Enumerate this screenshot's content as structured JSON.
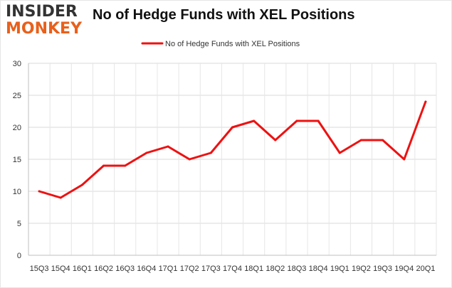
{
  "header": {
    "logo_line1": "INSIDER",
    "logo_line2": "MONKEY",
    "logo_line1_color": "#333333",
    "logo_line2_color": "#e8601c"
  },
  "chart_data": {
    "type": "line",
    "title": "No of Hedge Funds with XEL Positions",
    "xlabel": "",
    "ylabel": "",
    "categories": [
      "15Q3",
      "15Q4",
      "16Q1",
      "16Q2",
      "16Q3",
      "16Q4",
      "17Q1",
      "17Q2",
      "17Q3",
      "17Q4",
      "18Q1",
      "18Q2",
      "18Q3",
      "18Q4",
      "19Q1",
      "19Q2",
      "19Q3",
      "19Q4",
      "20Q1"
    ],
    "series": [
      {
        "name": "No of Hedge Funds with XEL Positions",
        "color": "#ee1111",
        "values": [
          10,
          9,
          11,
          14,
          14,
          16,
          17,
          15,
          16,
          20,
          21,
          18,
          21,
          21,
          16,
          18,
          18,
          15,
          24
        ]
      }
    ],
    "ylim": [
      0,
      30
    ],
    "yticks": [
      0,
      5,
      10,
      15,
      20,
      25,
      30
    ],
    "grid": true,
    "legend_position": "top-center"
  }
}
